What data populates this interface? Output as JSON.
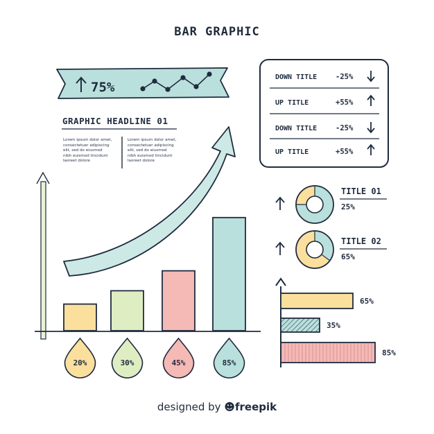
{
  "title": "BAR GRAPHIC",
  "banner": {
    "value": "75%"
  },
  "headline": "GRAPHIC HEADLINE 01",
  "lorem": [
    "Lorem ipsum dolor amet,\nconsectetuer adipiscing\nelit, sed do eiusmod\nnibh euismod tincidunt\nlaoreet dolore",
    "Lorem ipsum dolor amet,\nconsectetuer adipiscing\nelit, sed do eiusmod\nnibh euismod tincidunt\nlaoreet dolore"
  ],
  "table": [
    {
      "label": "DOWN TITLE",
      "value": "-25%",
      "direction": "down"
    },
    {
      "label": "UP TITLE",
      "value": "+55%",
      "direction": "up"
    },
    {
      "label": "DOWN TITLE",
      "value": "-25%",
      "direction": "down"
    },
    {
      "label": "UP TITLE",
      "value": "+55%",
      "direction": "up"
    }
  ],
  "donuts": [
    {
      "title": "TITLE 01",
      "value_label": "25%",
      "fraction": 0.25
    },
    {
      "title": "TITLE 02",
      "value_label": "65%",
      "fraction": 0.65
    }
  ],
  "credit": {
    "prefix": "designed by",
    "brand": "freepik"
  },
  "colors": {
    "ink": "#1f2b3e",
    "teal": "#b9e0dc",
    "yellow": "#fbdf9d",
    "green": "#dfedc2",
    "pink": "#f5b9b6",
    "arrow_fill": "#cde9e6"
  },
  "chart_data": [
    {
      "type": "bar",
      "orientation": "vertical",
      "categories": [
        "",
        "",
        "",
        ""
      ],
      "values": [
        20,
        30,
        45,
        85
      ],
      "labels": [
        "20%",
        "30%",
        "45%",
        "85%"
      ],
      "colors": [
        "#fbdf9d",
        "#dfedc2",
        "#f5b9b6",
        "#b9e0dc"
      ],
      "ylim": [
        0,
        100
      ]
    },
    {
      "type": "bar",
      "orientation": "horizontal",
      "values": [
        65,
        35,
        85
      ],
      "labels": [
        "65%",
        "35%",
        "85%"
      ],
      "colors": [
        "#fbdf9d",
        "#b9e0dc",
        "#f5b9b6"
      ],
      "xlim": [
        0,
        100
      ]
    }
  ]
}
